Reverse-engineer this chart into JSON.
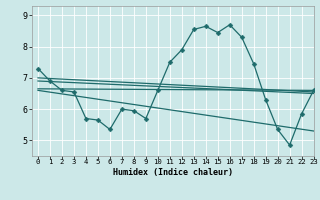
{
  "xlabel": "Humidex (Indice chaleur)",
  "bg_color": "#cce8e8",
  "line_color": "#1e6b6b",
  "grid_color": "#ffffff",
  "xlim": [
    -0.5,
    23
  ],
  "ylim": [
    4.5,
    9.3
  ],
  "xtick_labels": [
    "0",
    "1",
    "2",
    "3",
    "4",
    "5",
    "6",
    "7",
    "8",
    "9",
    "10",
    "11",
    "12",
    "13",
    "14",
    "15",
    "16",
    "17",
    "18",
    "19",
    "20",
    "21",
    "22",
    "23"
  ],
  "yticks": [
    5,
    6,
    7,
    8,
    9
  ],
  "main_series": {
    "x": [
      0,
      1,
      2,
      3,
      4,
      5,
      6,
      7,
      8,
      9,
      10,
      11,
      12,
      13,
      14,
      15,
      16,
      17,
      18,
      19,
      20,
      21,
      22,
      23
    ],
    "y": [
      7.3,
      6.9,
      6.6,
      6.55,
      5.7,
      5.65,
      5.35,
      6.0,
      5.95,
      5.7,
      6.6,
      7.5,
      7.9,
      8.55,
      8.65,
      8.45,
      8.7,
      8.3,
      7.45,
      6.3,
      5.35,
      4.85,
      5.85,
      6.6
    ]
  },
  "reg_lines": [
    {
      "x": [
        0,
        23
      ],
      "y": [
        7.0,
        6.55
      ]
    },
    {
      "x": [
        0,
        23
      ],
      "y": [
        6.9,
        6.5
      ]
    },
    {
      "x": [
        0,
        23
      ],
      "y": [
        6.65,
        6.6
      ]
    },
    {
      "x": [
        0,
        23
      ],
      "y": [
        6.6,
        5.3
      ]
    }
  ]
}
